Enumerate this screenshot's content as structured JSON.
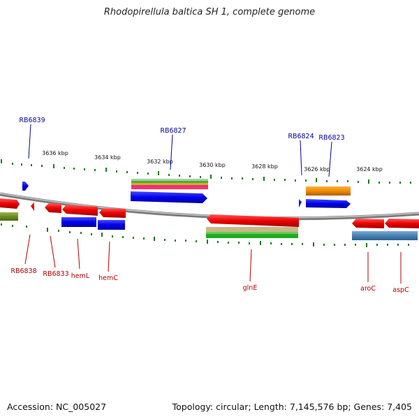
{
  "title": "Rhodopirellula baltica SH 1, complete genome",
  "footer": {
    "accession": "Accession: NC_005027",
    "topology": "Topology: circular; Length: 7,145,576 bp; Genes: 7,405"
  },
  "colors": {
    "top_label": "#00009c",
    "bottom_label": "#b00000",
    "tick": "#1a7a1a",
    "backbone": "#8c8c8c"
  },
  "kbp_labels": [
    "3636 kbp",
    "3634 kbp",
    "3632 kbp",
    "3630 kbp",
    "3628 kbp",
    "3626 kbp",
    "3624 kbp"
  ],
  "top_gene_labels": [
    "RB6839",
    "RB6827",
    "RB6824",
    "RB6823"
  ],
  "bottom_gene_labels": [
    "RB6838",
    "RB6833",
    "hemL",
    "hemC",
    "glnE",
    "aroC",
    "aspC"
  ]
}
